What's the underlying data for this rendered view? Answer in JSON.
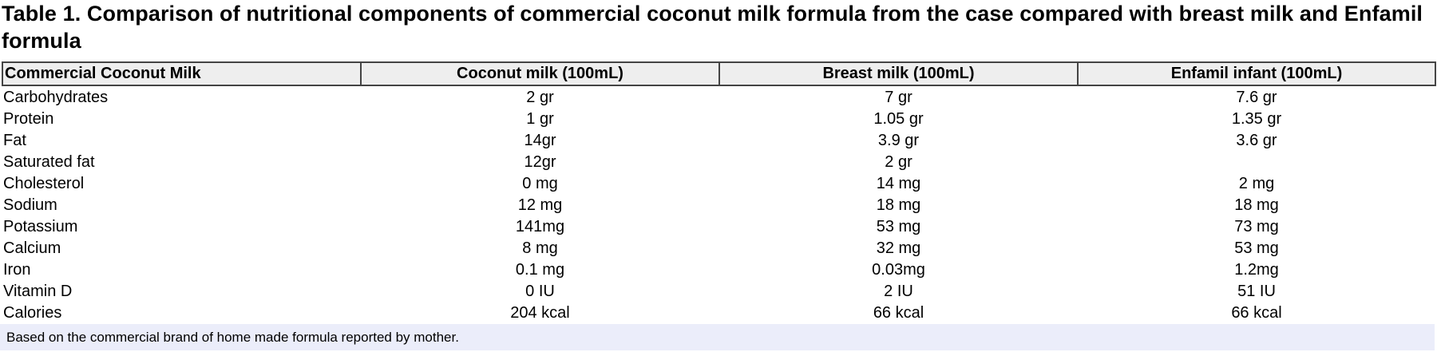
{
  "caption": "Table 1. Comparison of nutritional components of commercial coconut milk formula from the case compared with breast milk and Enfamil formula",
  "table": {
    "headers": [
      "Commercial Coconut Milk",
      "Coconut milk (100mL)",
      "Breast milk (100mL)",
      "Enfamil infant (100mL)"
    ],
    "rows": [
      [
        "Carbohydrates",
        "2 gr",
        "7 gr",
        "7.6 gr"
      ],
      [
        "Protein",
        "1 gr",
        "1.05 gr",
        "1.35 gr"
      ],
      [
        "Fat",
        "14gr",
        "3.9 gr",
        "3.6 gr"
      ],
      [
        "Saturated fat",
        "12gr",
        "2 gr",
        ""
      ],
      [
        "Cholesterol",
        "0 mg",
        "14 mg",
        "2 mg"
      ],
      [
        "Sodium",
        "12 mg",
        "18 mg",
        "18 mg"
      ],
      [
        "Potassium",
        "141mg",
        "53 mg",
        "73 mg"
      ],
      [
        "Calcium",
        "8 mg",
        "32 mg",
        "53 mg"
      ],
      [
        "Iron",
        "0.1 mg",
        "0.03mg",
        "1.2mg"
      ],
      [
        "Vitamin D",
        "0 IU",
        "2 IU",
        "51 IU"
      ],
      [
        "Calories",
        "204 kcal",
        "66 kcal",
        "66 kcal"
      ]
    ]
  },
  "footnote": "Based on the commercial brand of home made formula reported by mother."
}
